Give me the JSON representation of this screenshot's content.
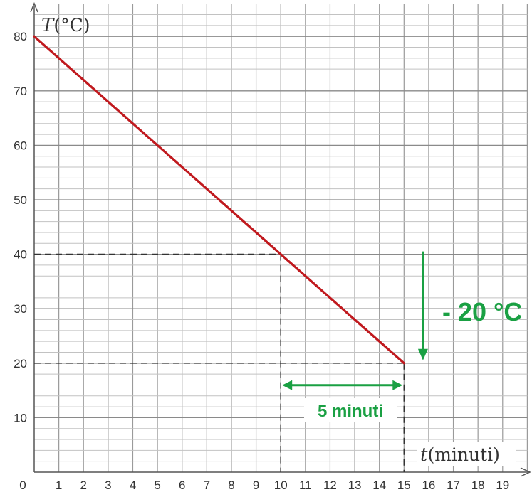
{
  "chart_data": {
    "type": "line",
    "title": "",
    "xlabel": {
      "symbol": "t",
      "unit": "(minuti)"
    },
    "ylabel": {
      "symbol": "T",
      "unit": "(°C)"
    },
    "xlim": [
      0,
      20
    ],
    "ylim": [
      0,
      85
    ],
    "grid": true,
    "x_ticks": [
      "0",
      "1",
      "2",
      "3",
      "4",
      "5",
      "6",
      "7",
      "8",
      "9",
      "10",
      "11",
      "12",
      "13",
      "14",
      "15",
      "16",
      "17",
      "18",
      "19"
    ],
    "y_ticks": [
      "10",
      "20",
      "30",
      "40",
      "50",
      "60",
      "70",
      "80"
    ],
    "series": [
      {
        "x": [
          0,
          15
        ],
        "y": [
          80,
          20
        ],
        "color": "#c0191e"
      }
    ],
    "reference_lines": [
      {
        "point": [
          10,
          40
        ]
      },
      {
        "point": [
          15,
          20
        ]
      }
    ],
    "annotations": [
      {
        "text": "- 20 °C",
        "kind": "vertical-arrow",
        "from": 40,
        "to": 20,
        "at_x": 16,
        "color": "#1aa043"
      },
      {
        "text": "5 minuti",
        "kind": "horizontal-double-arrow",
        "from": 10,
        "to": 15,
        "at_y": 17,
        "color": "#1aa043"
      }
    ]
  }
}
